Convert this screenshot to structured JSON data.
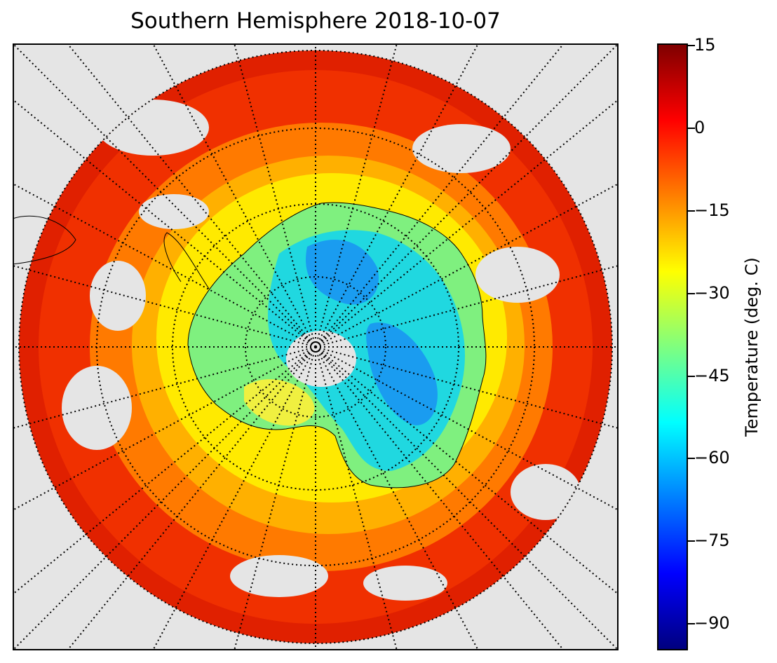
{
  "title": "Southern Hemisphere 2018-10-07",
  "colorbar": {
    "label": "Temperature (deg. C)",
    "min": -95,
    "max": 15,
    "colormap": "jet",
    "ticks": [
      "15",
      "0",
      "−15",
      "−30",
      "−45",
      "−60",
      "−75",
      "−90"
    ]
  },
  "map": {
    "projection": "south polar stereographic",
    "background_color": "#e5e5e5",
    "graticule": "dotted",
    "coastlines": true
  }
}
